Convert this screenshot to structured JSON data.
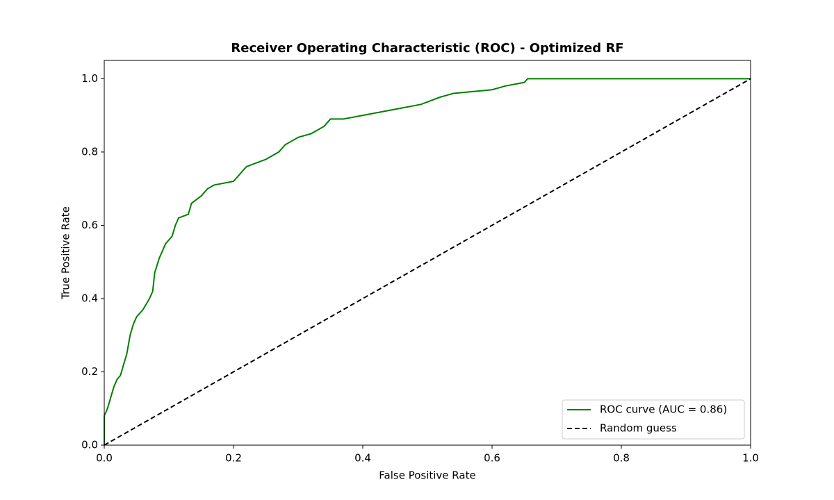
{
  "chart_data": {
    "type": "line",
    "title": "Receiver Operating Characteristic (ROC) - Optimized RF",
    "x_label": "False Positive Rate",
    "y_label": "True Positive Rate",
    "xlim": [
      0,
      1
    ],
    "ylim": [
      0,
      1.05
    ],
    "xticks": [
      {
        "value": 0,
        "label": "0.0"
      },
      0.2,
      0.4,
      0.6,
      0.8,
      {
        "value": 1,
        "label": "1.0"
      }
    ],
    "yticks": [
      {
        "value": 0,
        "label": "0.0"
      },
      0.2,
      0.4,
      0.6,
      0.8,
      {
        "value": 1,
        "label": "1.0"
      }
    ],
    "legend": "lower right",
    "series": [
      {
        "name": "ROC curve (AUC = 0.86)",
        "color": "#008000",
        "style": "solid",
        "x": [
          0,
          0,
          0.005,
          0.01,
          0.015,
          0.02,
          0.025,
          0.03,
          0.035,
          0.04,
          0.045,
          0.05,
          0.06,
          0.07,
          0.075,
          0.078,
          0.085,
          0.095,
          0.105,
          0.11,
          0.115,
          0.13,
          0.135,
          0.15,
          0.16,
          0.17,
          0.2,
          0.21,
          0.22,
          0.235,
          0.25,
          0.27,
          0.28,
          0.3,
          0.32,
          0.34,
          0.35,
          0.37,
          0.4,
          0.43,
          0.46,
          0.49,
          0.52,
          0.54,
          0.57,
          0.6,
          0.62,
          0.65,
          0.655,
          1
        ],
        "values": [
          0,
          0.08,
          0.1,
          0.13,
          0.16,
          0.18,
          0.19,
          0.22,
          0.25,
          0.3,
          0.33,
          0.35,
          0.37,
          0.4,
          0.42,
          0.47,
          0.51,
          0.55,
          0.57,
          0.6,
          0.62,
          0.63,
          0.66,
          0.68,
          0.7,
          0.71,
          0.72,
          0.74,
          0.76,
          0.77,
          0.78,
          0.8,
          0.82,
          0.84,
          0.85,
          0.87,
          0.89,
          0.89,
          0.9,
          0.91,
          0.92,
          0.93,
          0.95,
          0.96,
          0.965,
          0.97,
          0.98,
          0.99,
          1,
          1
        ]
      },
      {
        "name": "Random guess",
        "color": "#000000",
        "style": "dashed",
        "x": [
          0,
          1
        ],
        "values": [
          0,
          1
        ]
      }
    ]
  }
}
